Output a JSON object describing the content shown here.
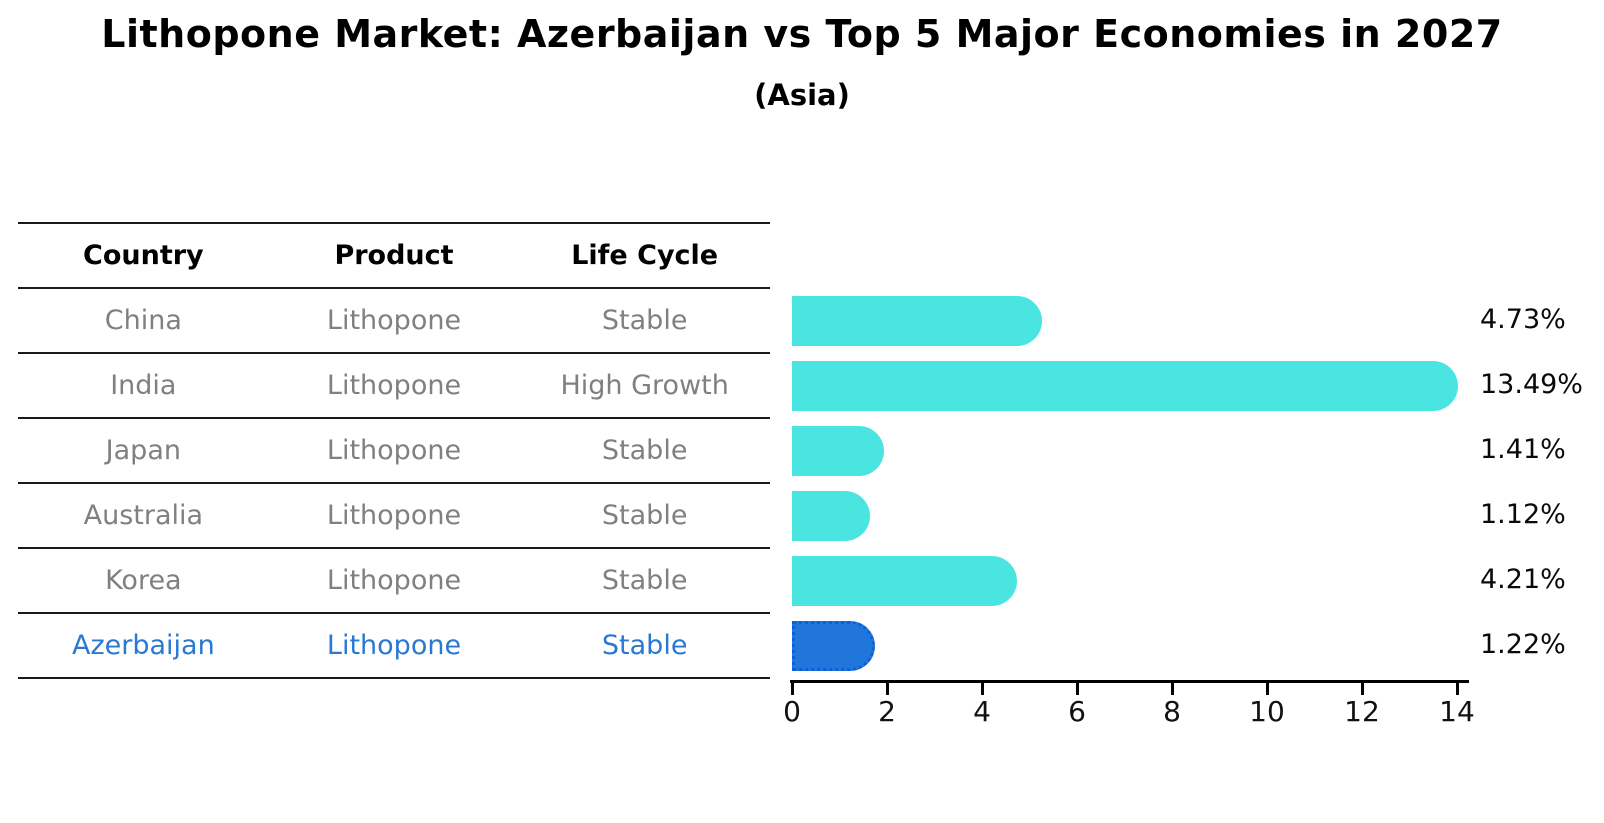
{
  "title": "Lithopone Market: Azerbaijan vs Top 5 Major Economies in 2027",
  "subtitle": "(Asia)",
  "table": {
    "headers": [
      "Country",
      "Product",
      "Life Cycle"
    ],
    "rows": [
      {
        "country": "China",
        "product": "Lithopone",
        "life_cycle": "Stable",
        "highlighted": false
      },
      {
        "country": "India",
        "product": "Lithopone",
        "life_cycle": "High Growth",
        "highlighted": false
      },
      {
        "country": "Japan",
        "product": "Lithopone",
        "life_cycle": "Stable",
        "highlighted": false
      },
      {
        "country": "Australia",
        "product": "Lithopone",
        "life_cycle": "Stable",
        "highlighted": false
      },
      {
        "country": "Korea",
        "product": "Lithopone",
        "life_cycle": "Stable",
        "highlighted": false
      },
      {
        "country": "Azerbaijan",
        "product": "Lithopone",
        "life_cycle": "Stable",
        "highlighted": true
      }
    ]
  },
  "chart_data": {
    "type": "bar",
    "orientation": "horizontal",
    "title": "Lithopone Market: Azerbaijan vs Top 5 Major Economies in 2027",
    "subtitle": "(Asia)",
    "categories": [
      "China",
      "India",
      "Japan",
      "Australia",
      "Korea",
      "Azerbaijan"
    ],
    "values": [
      4.73,
      13.49,
      1.41,
      1.12,
      4.21,
      1.22
    ],
    "value_labels": [
      "4.73%",
      "13.49%",
      "1.41%",
      "1.12%",
      "4.21%",
      "1.22%"
    ],
    "xlabel": "",
    "ylabel": "",
    "xlim": [
      0,
      14
    ],
    "xticks": [
      0,
      2,
      4,
      6,
      8,
      10,
      12,
      14
    ],
    "grid": false,
    "legend": false,
    "bar_color": "#4ae5e0",
    "highlight_color": "#2176dc",
    "highlight_border_color": "#0e5fd6",
    "highlight_index": 5,
    "highlight_text_color": "#2979d2"
  }
}
